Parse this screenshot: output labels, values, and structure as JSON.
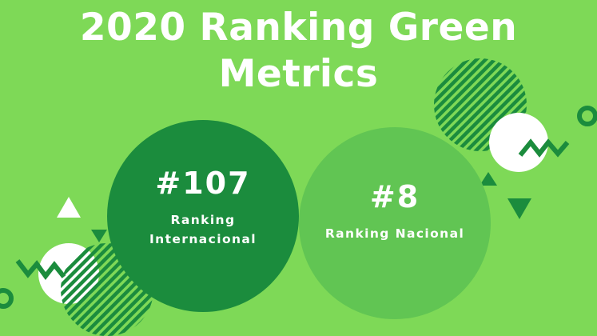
{
  "header": {
    "title_line1": "2020 Ranking Green",
    "title_line2": "Metrics"
  },
  "rankings": [
    {
      "value": "#107",
      "label": "Ranking Internacional"
    },
    {
      "value": "#8",
      "label": "Ranking Nacional"
    }
  ],
  "colors": {
    "background": "#7ed957",
    "dark_green": "#1b8c3d",
    "medium_green": "#61c553",
    "text": "#ffffff"
  },
  "decorations": [
    "hatched-circle",
    "white-circle",
    "zigzag",
    "ring",
    "triangle-up",
    "triangle-down"
  ]
}
